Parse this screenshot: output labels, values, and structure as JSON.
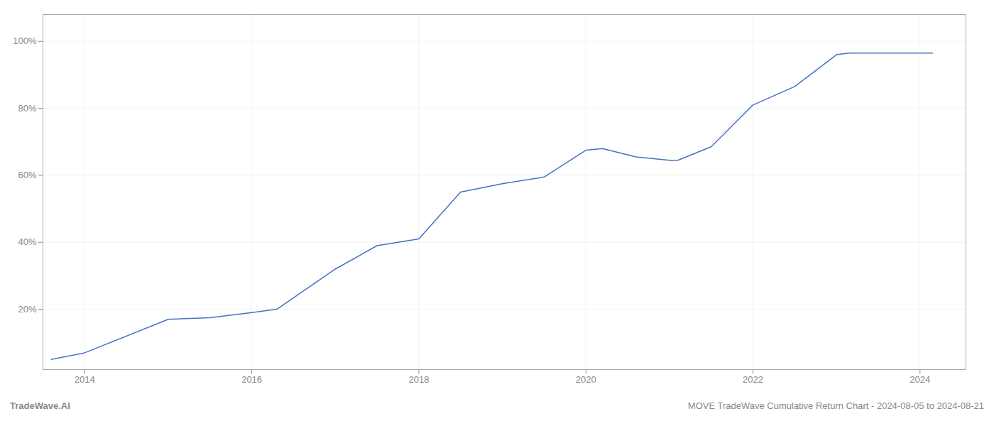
{
  "chart_data": {
    "type": "line",
    "x": [
      2013.6,
      2014.0,
      2015.0,
      2015.5,
      2016.0,
      2016.3,
      2017.0,
      2017.5,
      2018.0,
      2018.5,
      2019.0,
      2019.5,
      2020.0,
      2020.2,
      2020.6,
      2021.0,
      2021.1,
      2021.5,
      2022.0,
      2022.5,
      2023.0,
      2023.15,
      2023.6,
      2024.15
    ],
    "values": [
      0.05,
      0.07,
      0.17,
      0.175,
      0.19,
      0.2,
      0.32,
      0.39,
      0.41,
      0.55,
      0.575,
      0.595,
      0.675,
      0.68,
      0.655,
      0.645,
      0.645,
      0.685,
      0.81,
      0.865,
      0.96,
      0.965,
      0.965,
      0.965
    ],
    "color": "#4472c4",
    "xlim": [
      2013.5,
      2024.55
    ],
    "xticks": [
      2014,
      2016,
      2018,
      2020,
      2022,
      2024
    ],
    "ylim": [
      0.02,
      1.08
    ],
    "yticks": [
      {
        "value": 0.2,
        "label": "20%"
      },
      {
        "value": 0.4,
        "label": "40%"
      },
      {
        "value": 0.6,
        "label": "60%"
      },
      {
        "value": 0.8,
        "label": "80%"
      },
      {
        "value": 1.0,
        "label": "100%"
      }
    ],
    "grid": true,
    "annotations": [
      "TradeWave.AI",
      "MOVE TradeWave Cumulative Return Chart - 2024-08-05 to 2024-08-21"
    ]
  }
}
